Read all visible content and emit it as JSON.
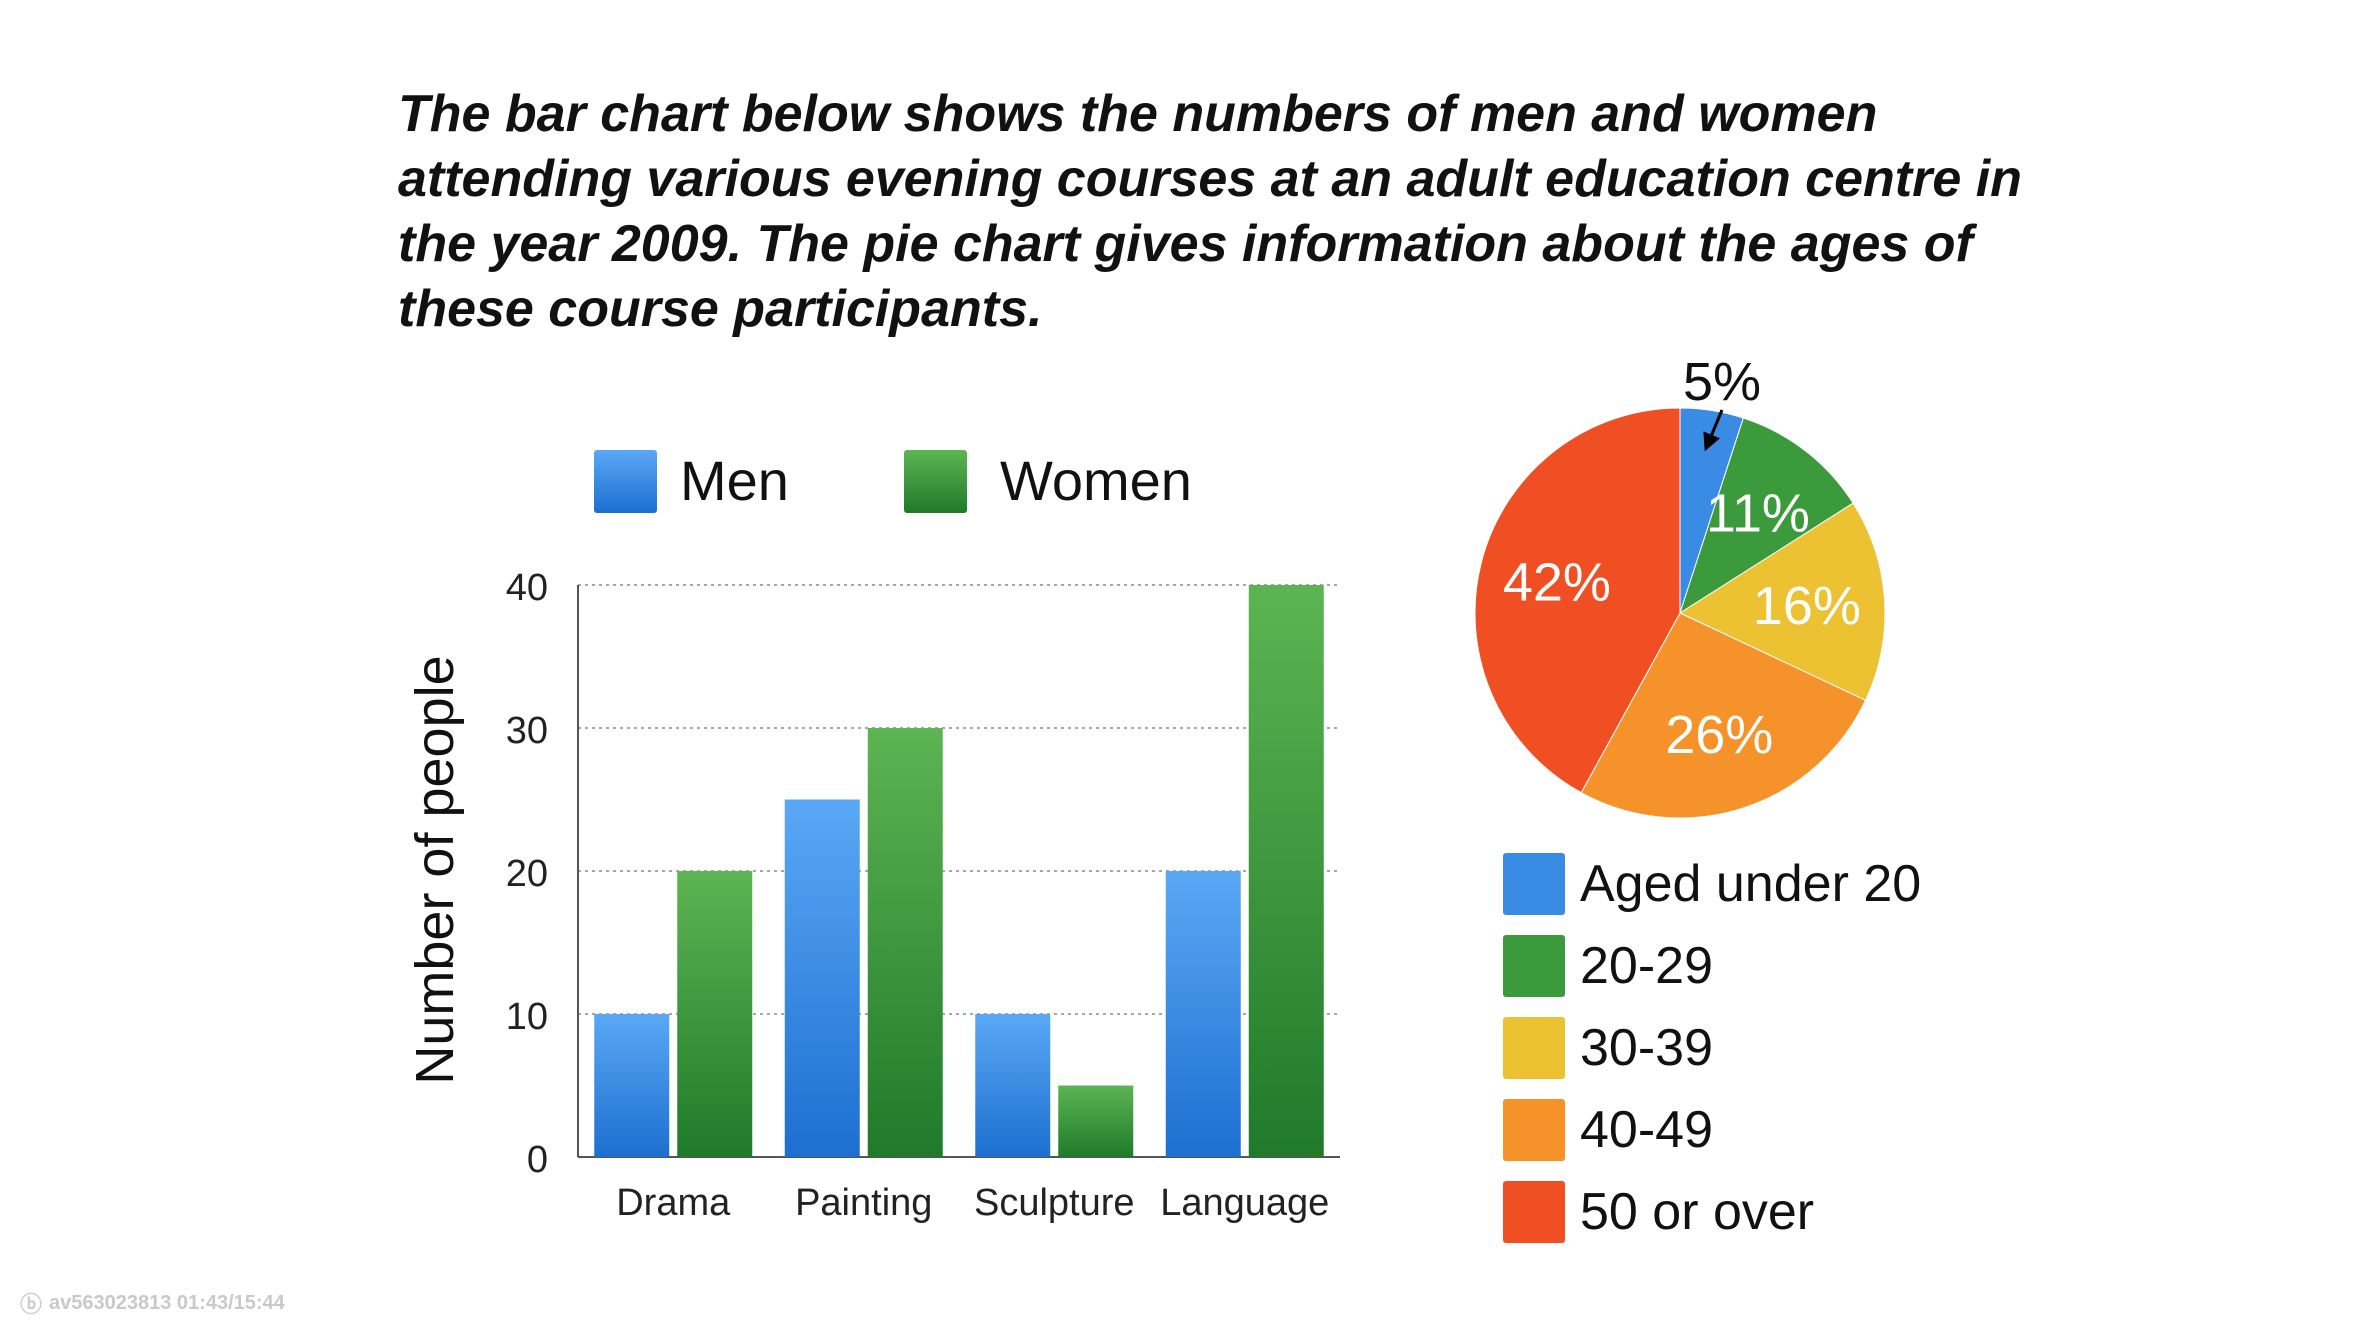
{
  "intro_text": "The bar chart below shows the numbers of men and women attending various evening courses at an adult education centre in the year 2009. The pie chart gives information about the ages of these course participants.",
  "colors": {
    "men": "#3f8ee6",
    "women": "#3e9a3a",
    "aged_under_20": "#3a8be4",
    "20_29": "#3a9a3c",
    "30_39": "#ecc232",
    "40_49": "#f5922a",
    "50_or_over": "#f04e23"
  },
  "chart_data": [
    {
      "type": "bar",
      "title": "",
      "categories": [
        "Drama",
        "Painting",
        "Sculpture",
        "Language"
      ],
      "series": [
        {
          "name": "Men",
          "values": [
            10,
            25,
            10,
            20
          ]
        },
        {
          "name": "Women",
          "values": [
            20,
            30,
            5,
            40
          ]
        }
      ],
      "xlabel": "",
      "ylabel": "Number of people",
      "ylim": [
        0,
        40
      ],
      "yticks": [
        "0",
        "10",
        "20",
        "30",
        "40"
      ],
      "grid": true,
      "legend": "top"
    },
    {
      "type": "pie",
      "title": "",
      "slices": [
        {
          "name": "Aged under 20",
          "value": 5,
          "label": "5%"
        },
        {
          "name": "20-29",
          "value": 11,
          "label": "11%"
        },
        {
          "name": "30-39",
          "value": 16,
          "label": "16%"
        },
        {
          "name": "40-49",
          "value": 26,
          "label": "26%"
        },
        {
          "name": "50 or over",
          "value": 42,
          "label": "42%"
        }
      ],
      "legend": "bottom"
    }
  ],
  "watermark": {
    "logo": "bilibili",
    "text": "av563023813 01:43/15:44"
  }
}
